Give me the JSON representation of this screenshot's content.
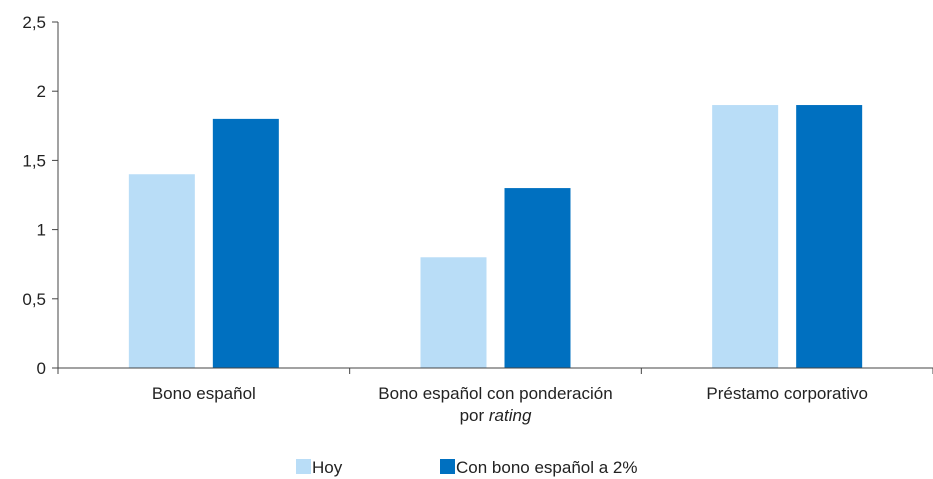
{
  "chart_data": {
    "type": "bar",
    "categories": [
      {
        "lines": [
          {
            "text": "Bono español"
          }
        ]
      },
      {
        "lines": [
          {
            "text": "Bono español con ponderación"
          },
          {
            "prefix": "por ",
            "italic": "rating"
          }
        ]
      },
      {
        "lines": [
          {
            "text": "Préstamo corporativo"
          }
        ]
      }
    ],
    "series": [
      {
        "name": "Hoy",
        "values": [
          1.4,
          0.8,
          1.9
        ],
        "color": "#b9ddf7"
      },
      {
        "name": "Con bono español a 2%",
        "values": [
          1.8,
          1.3,
          1.9
        ],
        "color": "#0070c0"
      }
    ],
    "y_ticks": [
      "0",
      "0,5",
      "1",
      "1,5",
      "2",
      "2,5"
    ],
    "ylim": [
      0,
      2.5
    ],
    "grid": false,
    "legend": "bottom"
  }
}
